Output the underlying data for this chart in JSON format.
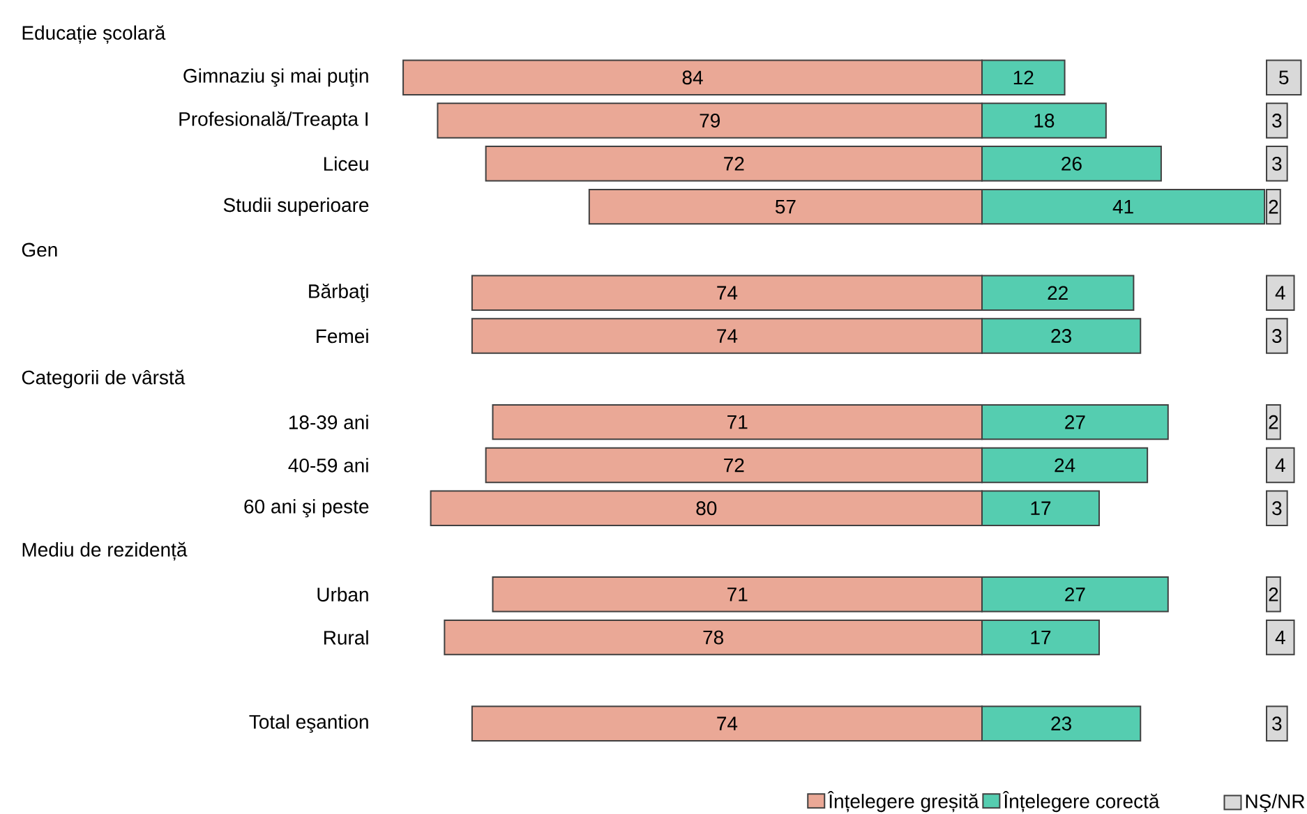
{
  "chart_data": [
    {
      "type": "bar",
      "orientation": "horizontal",
      "legend": "bottom right",
      "xlim": [
        84,
        0
      ],
      "categories": [
        null,
        "Gimnaziu şi mai puţin",
        "Profesională/Treapta I",
        "Liceu",
        "Studii superioare",
        null,
        "Bărbaţi",
        "Femei",
        null,
        "18-39 ani",
        "40-59 ani",
        "60 ani şi peste",
        null,
        "Urban",
        "Rural",
        null,
        "Total eşantion"
      ],
      "annotations": [
        "Educație școlară",
        "Gen",
        "Categorii de vârstă",
        "Mediu de rezidență"
      ],
      "series": [
        {
          "name": "Înțelegere greșită",
          "color": "#eaa896",
          "values": [
            null,
            84,
            79,
            72,
            57,
            null,
            74,
            74,
            null,
            71,
            72,
            80,
            null,
            71,
            78,
            null,
            74
          ],
          "value_labels": [
            null,
            "84",
            "79",
            "72",
            "57",
            null,
            "74",
            "74",
            null,
            "71",
            "72",
            "80",
            null,
            "71",
            "78",
            null,
            "74"
          ]
        }
      ]
    },
    {
      "type": "bar",
      "orientation": "horizontal",
      "legend": "bottom left",
      "xlim": [
        0,
        41
      ],
      "categories": [
        null,
        null,
        null,
        null,
        null,
        null,
        null,
        null,
        null,
        null,
        null,
        null,
        null,
        null,
        null,
        null,
        null
      ],
      "series": [
        {
          "name": "Înțelegere corectă",
          "color": "#55cdb0",
          "values": [
            null,
            12,
            18,
            26,
            41,
            null,
            22,
            23,
            null,
            27,
            24,
            17,
            null,
            27,
            17,
            null,
            23
          ],
          "value_labels": [
            null,
            "12",
            "18",
            "26",
            "41",
            null,
            "22",
            "23",
            null,
            "27",
            "24",
            "17",
            null,
            "27",
            "17",
            null,
            "23"
          ]
        }
      ]
    },
    {
      "type": "bar",
      "orientation": "horizontal",
      "legend": "bottom",
      "categories": [
        null,
        null,
        null,
        null,
        null,
        null,
        null,
        null,
        null,
        null,
        null,
        null,
        null,
        null,
        null,
        null,
        null
      ],
      "series": [
        {
          "name": "NŞ/NR",
          "color": "#d9d9d9",
          "values": [
            null,
            5,
            3,
            3,
            2,
            null,
            4,
            3,
            null,
            2,
            4,
            3,
            null,
            2,
            4,
            null,
            3
          ],
          "value_labels": [
            null,
            "5",
            "3",
            "3",
            "2",
            null,
            "4",
            "3",
            null,
            "2",
            "4",
            "3",
            null,
            "2",
            "4",
            null,
            "3"
          ]
        }
      ]
    }
  ]
}
